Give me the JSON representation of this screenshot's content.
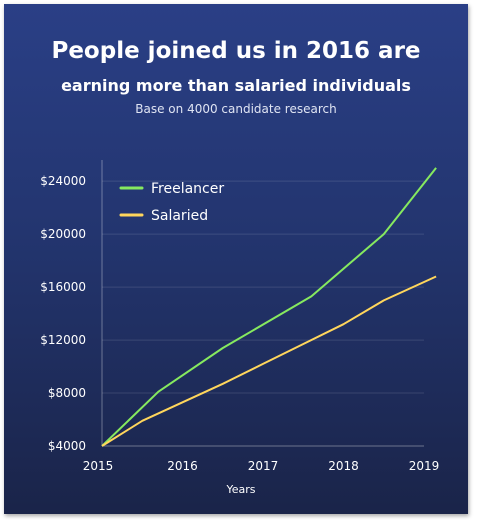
{
  "header": {
    "title": "People joined us in 2016 are",
    "subtitle": "earning more than salaried individuals",
    "note": "Base on 4000 candidate research"
  },
  "chart_data": {
    "type": "line",
    "xlabel": "Years",
    "ylabel": "",
    "xlim": [
      2015,
      2019
    ],
    "ylim": [
      4000,
      25600
    ],
    "x_ticks": [
      2015,
      2016,
      2017,
      2018,
      2019
    ],
    "x_tick_labels": [
      "2015",
      "2016",
      "2017",
      "2018",
      "2019"
    ],
    "y_ticks": [
      4000,
      8000,
      12000,
      16000,
      20000,
      24000
    ],
    "y_tick_labels": [
      "$4000",
      "$8000",
      "$12000",
      "$16000",
      "$20000",
      "$24000"
    ],
    "grid": "horizontal",
    "legend_position": "top-left",
    "series": [
      {
        "name": "Freelancer",
        "color": "#86e95f",
        "x": [
          2015,
          2015.7,
          2016.5,
          2017.6,
          2018.5,
          2019.15
        ],
        "y": [
          4000,
          8100,
          11400,
          15300,
          20000,
          25000
        ]
      },
      {
        "name": "Salaried",
        "color": "#ffd65c",
        "x": [
          2015,
          2015.5,
          2016,
          2016.5,
          2017,
          2017.5,
          2018,
          2018.5,
          2019.15
        ],
        "y": [
          4000,
          5900,
          7300,
          8700,
          10200,
          11700,
          13200,
          15000,
          16800
        ]
      }
    ]
  }
}
